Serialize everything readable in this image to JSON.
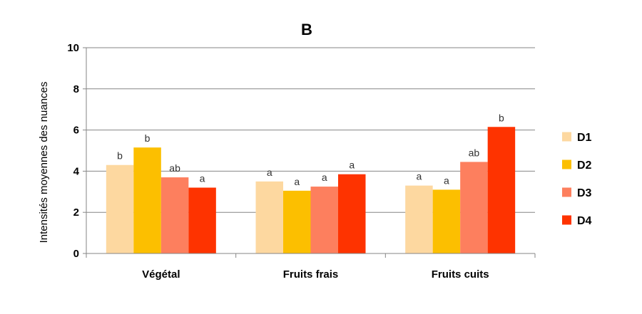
{
  "chart_data": {
    "type": "bar",
    "title": "B",
    "ylabel": "Intensités moyennes des nuances",
    "xlabel": "",
    "ylim": [
      0,
      10
    ],
    "yticks": [
      "0",
      "2",
      "4",
      "6",
      "8",
      "10"
    ],
    "grid": true,
    "legend_position": "right",
    "categories": [
      "Végétal",
      "Fruits frais",
      "Fruits cuits"
    ],
    "series": [
      {
        "name": "D1",
        "color": "#FDD8A0",
        "values": [
          4.3,
          3.5,
          3.3
        ],
        "labels": [
          "b",
          "a",
          "a"
        ]
      },
      {
        "name": "D2",
        "color": "#FCBF00",
        "values": [
          5.15,
          3.05,
          3.1
        ],
        "labels": [
          "b",
          "a",
          "a"
        ]
      },
      {
        "name": "D3",
        "color": "#FD7F5E",
        "values": [
          3.7,
          3.25,
          4.45
        ],
        "labels": [
          "ab",
          "a",
          "ab"
        ]
      },
      {
        "name": "D4",
        "color": "#FE3300",
        "values": [
          3.2,
          3.85,
          6.15
        ],
        "labels": [
          "a",
          "a",
          "b"
        ]
      }
    ]
  }
}
